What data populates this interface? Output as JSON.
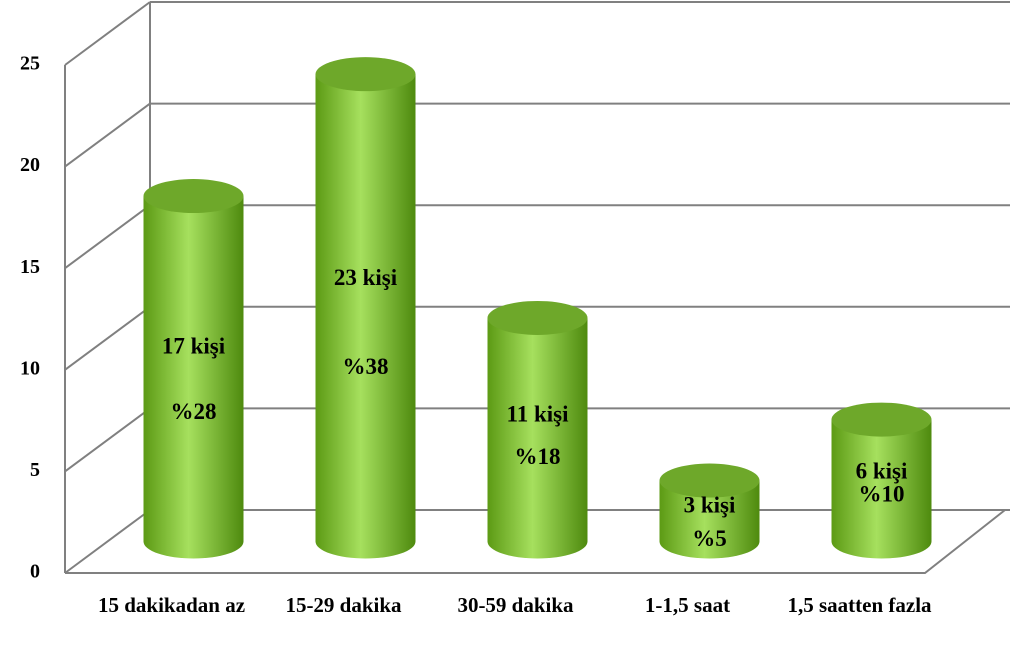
{
  "chart_data": {
    "type": "bar",
    "categories": [
      "15 dakikadan az",
      "15-29 dakika",
      "30-59 dakika",
      "1-1,5 saat",
      "1,5 saatten fazla"
    ],
    "values": [
      17,
      23,
      11,
      3,
      6
    ],
    "value_labels": [
      "17 kişi",
      "23 kişi",
      "11 kişi",
      "3 kişi",
      "6 kişi"
    ],
    "percentages": [
      28,
      38,
      18,
      5,
      10
    ],
    "percentage_labels": [
      "%28",
      "%38",
      "%18",
      "%5",
      "%10"
    ],
    "color": "#8fd13f",
    "ylim": [
      0,
      25
    ],
    "yticks": [
      0,
      5,
      10,
      15,
      20,
      25
    ],
    "grid": true
  }
}
